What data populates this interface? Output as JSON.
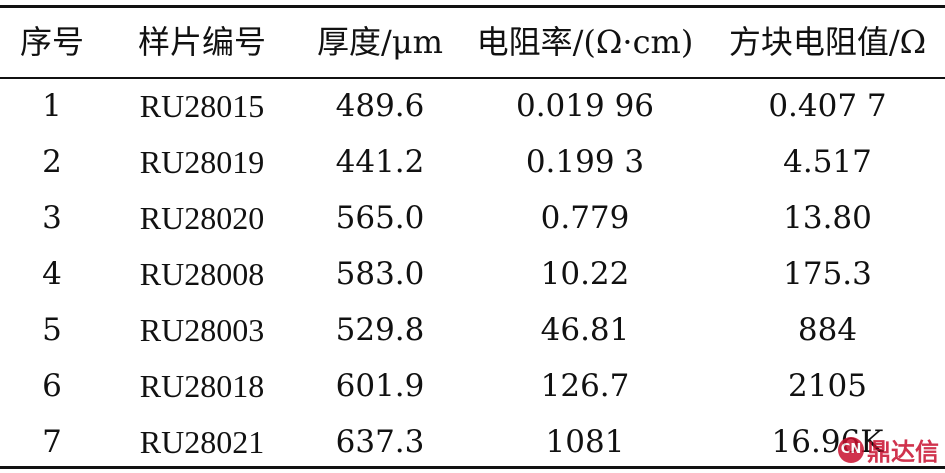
{
  "table": {
    "headers": [
      "序号",
      "样片编号",
      "厚度/μm",
      "电阻率/(Ω·cm)",
      "方块电阻值/Ω"
    ],
    "rows": [
      [
        "1",
        "RU28015",
        "489.6",
        "0.019 96",
        "0.407 7"
      ],
      [
        "2",
        "RU28019",
        "441.2",
        "0.199 3",
        "4.517"
      ],
      [
        "3",
        "RU28020",
        "565.0",
        "0.779",
        "13.80"
      ],
      [
        "4",
        "RU28008",
        "583.0",
        "10.22",
        "175.3"
      ],
      [
        "5",
        "RU28003",
        "529.8",
        "46.81",
        "884"
      ],
      [
        "6",
        "RU28018",
        "601.9",
        "126.7",
        "2105"
      ],
      [
        "7",
        "RU28021",
        "637.3",
        "1081",
        "16.96K"
      ]
    ]
  },
  "watermark": {
    "badge": "CN",
    "text": "鼎达信"
  }
}
